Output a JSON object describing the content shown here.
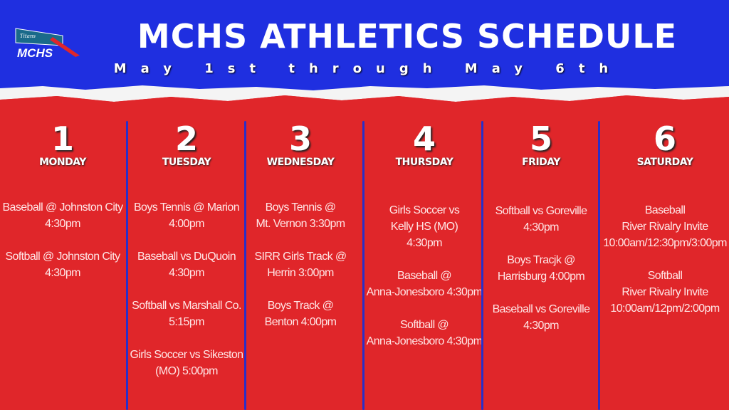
{
  "header": {
    "title": "MCHS ATHLETICS SCHEDULE",
    "subtitle": "May 1st through May 6th",
    "logo_text": "MCHS",
    "logo_script": "Titans"
  },
  "colors": {
    "blue": "#1f2fe0",
    "red": "#e0262a",
    "white": "#ffffff"
  },
  "days": [
    {
      "number": "1",
      "name": "MONDAY",
      "events": [
        "Baseball @ Johnston City\n4:30pm",
        "Softball @ Johnston City\n4:30pm"
      ]
    },
    {
      "number": "2",
      "name": "TUESDAY",
      "events": [
        "Boys Tennis @ Marion\n4:00pm",
        "Baseball vs DuQuoin\n4:30pm",
        "Softball vs Marshall Co.\n5:15pm",
        "Girls Soccer vs Sikeston\n(MO) 5:00pm"
      ]
    },
    {
      "number": "3",
      "name": "WEDNESDAY",
      "events": [
        "Boys Tennis @\nMt. Vernon 3:30pm",
        "SIRR Girls Track @\nHerrin 3:00pm",
        "Boys Track @\nBenton 4:00pm"
      ]
    },
    {
      "number": "4",
      "name": "THURSDAY",
      "events": [
        "Girls Soccer vs\nKelly HS (MO)\n4:30pm",
        "Baseball @\nAnna-Jonesboro 4:30pm",
        "Softball @\nAnna-Jonesboro 4:30pm"
      ]
    },
    {
      "number": "5",
      "name": "FRIDAY",
      "events": [
        "Softball vs Goreville\n4:30pm",
        "Boys Tracjk @\nHarrisburg 4:00pm",
        "Baseball vs Goreville\n4:30pm"
      ]
    },
    {
      "number": "6",
      "name": "SATURDAY",
      "events": [
        "Baseball\nRiver Rivalry Invite\n10:00am/12:30pm/3:00pm",
        "Softball\nRiver Rivalry Invite\n10:00am/12pm/2:00pm"
      ]
    }
  ]
}
